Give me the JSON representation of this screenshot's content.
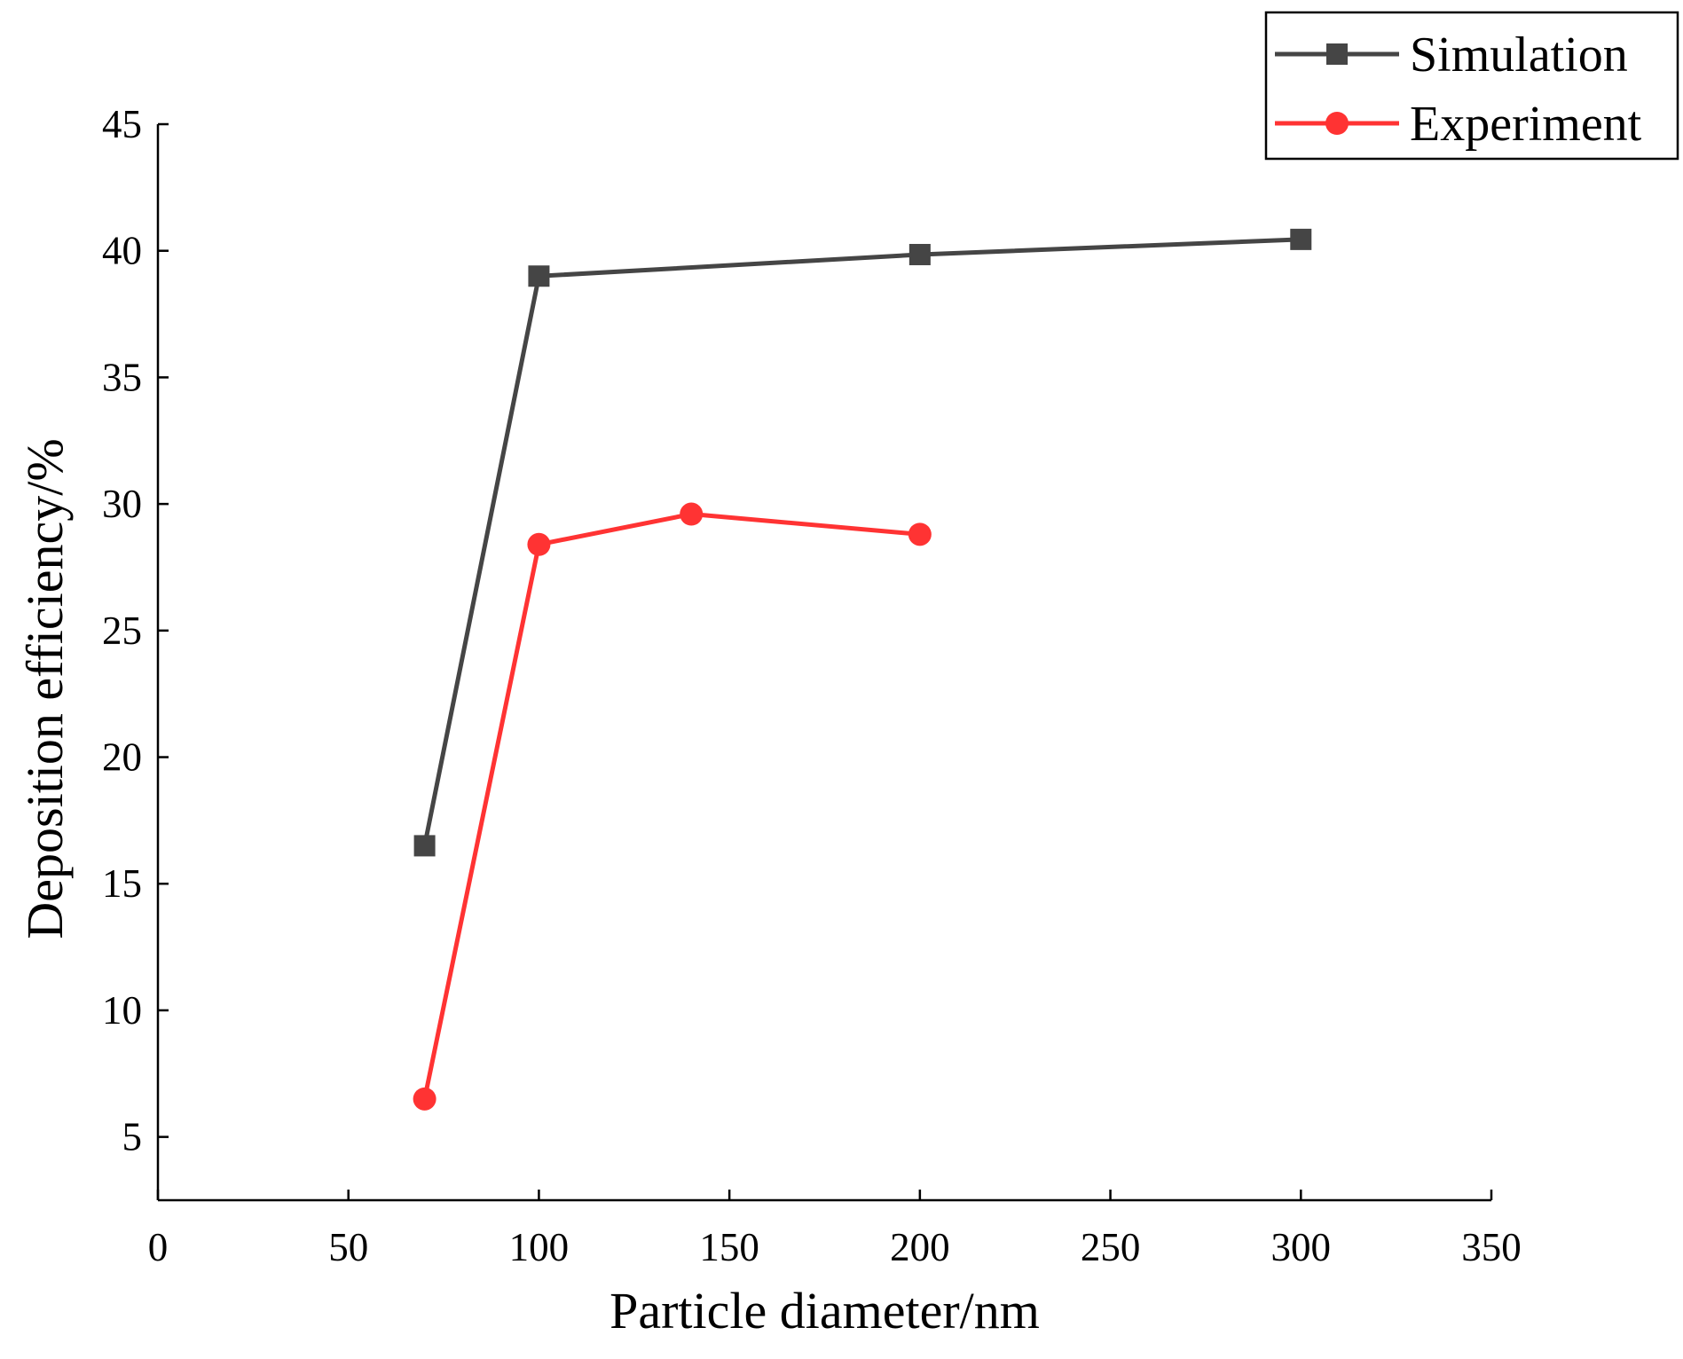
{
  "chart_data": {
    "type": "line",
    "title": "",
    "xlabel": "Particle diameter/nm",
    "ylabel": "Deposition efficiency/%",
    "xlim": [
      0,
      350
    ],
    "ylim": [
      2.5,
      45
    ],
    "xticks": [
      0,
      50,
      100,
      150,
      200,
      250,
      300,
      350
    ],
    "yticks": [
      5,
      10,
      15,
      20,
      25,
      30,
      35,
      40,
      45
    ],
    "xtick_labels": [
      "0",
      "50",
      "100",
      "150",
      "200",
      "250",
      "300",
      "350"
    ],
    "ytick_labels": [
      "5",
      "10",
      "15",
      "20",
      "25",
      "30",
      "35",
      "40",
      "45"
    ],
    "grid": false,
    "legend_position": "top-right",
    "series": [
      {
        "name": "Simulation",
        "marker": "square",
        "color": "#454545",
        "x": [
          70,
          100,
          200,
          300
        ],
        "y": [
          16.5,
          39.0,
          39.85,
          40.45
        ]
      },
      {
        "name": "Experiment",
        "marker": "circle",
        "color": "#ff3333",
        "x": [
          70,
          100,
          140,
          200
        ],
        "y": [
          6.5,
          28.4,
          29.6,
          28.8
        ]
      }
    ]
  }
}
